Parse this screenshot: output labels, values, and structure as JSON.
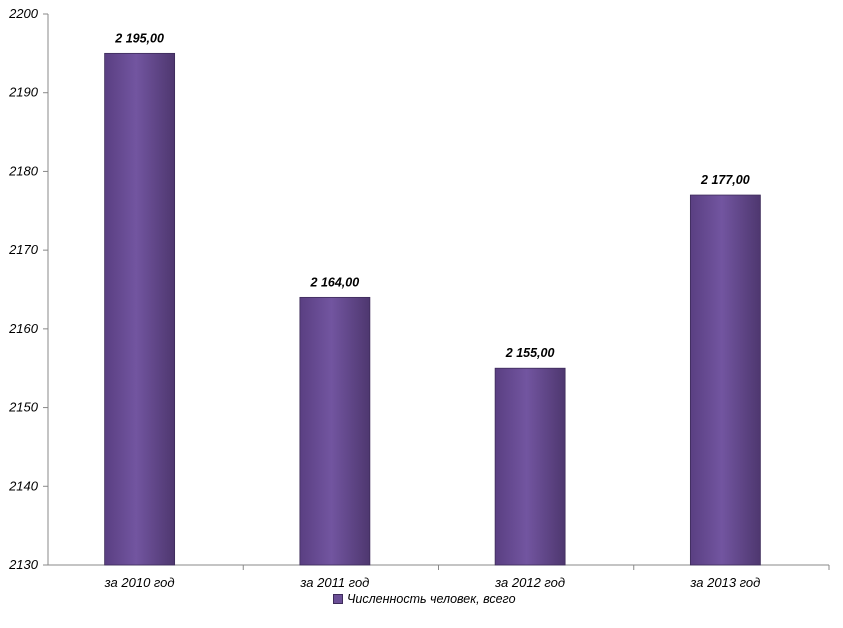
{
  "chart_data": {
    "type": "bar",
    "categories": [
      "за 2010 год",
      "за 2011 год",
      "за 2012 год",
      "за 2013 год"
    ],
    "series": [
      {
        "name": "Численность человек, всего",
        "values": [
          2195,
          2164,
          2155,
          2177
        ],
        "labels": [
          "2 195,00",
          "2 164,00",
          "2 155,00",
          "2 177,00"
        ],
        "color": "#6b4f96"
      }
    ],
    "ylim": [
      2130,
      2200
    ],
    "yticks": [
      2130,
      2140,
      2150,
      2160,
      2170,
      2180,
      2190,
      2200
    ],
    "legend_position": "bottom",
    "grid": false
  }
}
